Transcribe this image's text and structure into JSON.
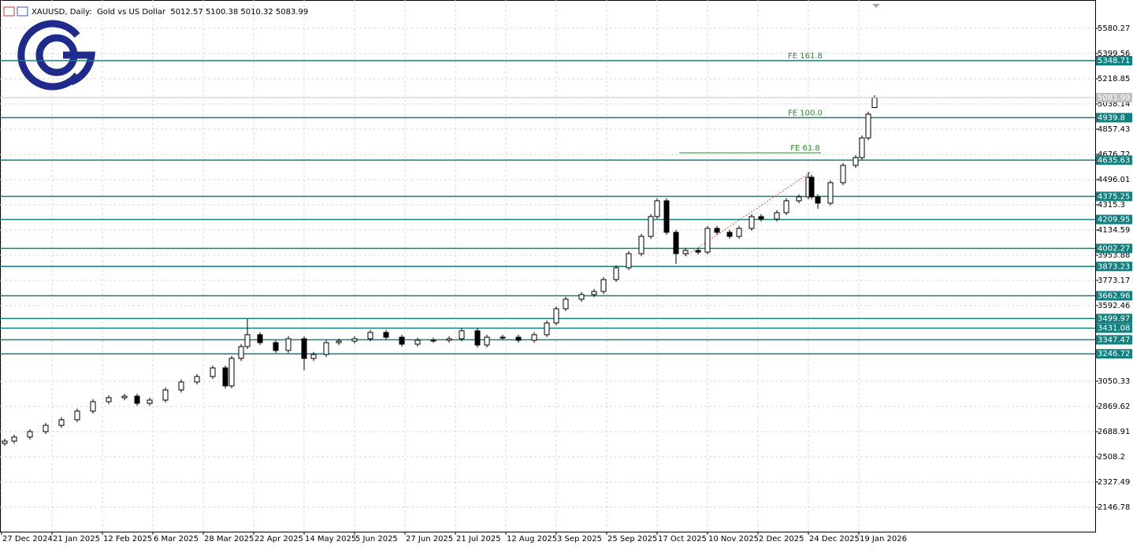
{
  "chart_data": {
    "type": "candlestick",
    "title": "XAUUSD, Daily:  Gold vs US Dollar  5012.57 5100.38 5010.32 5083.99",
    "x": [
      1,
      4,
      9,
      14,
      19,
      24,
      29,
      34,
      39,
      43,
      47,
      52,
      57,
      62,
      67,
      71,
      73,
      76,
      78,
      82,
      87,
      91,
      96,
      99,
      103,
      107,
      112,
      117,
      122,
      127,
      132,
      137,
      142,
      146,
      151,
      154,
      159,
      164,
      169,
      173,
      176,
      179,
      184,
      188,
      191,
      195,
      199,
      203,
      206,
      208,
      211,
      214,
      217,
      221,
      224,
      227,
      231,
      234,
      238,
      241,
      246,
      249,
      253,
      256,
      257,
      259,
      263,
      267,
      271,
      273,
      275,
      277
    ],
    "open": [
      2605,
      2621,
      2650,
      2689,
      2734,
      2774,
      2836,
      2904,
      2932,
      2943,
      2892,
      2915,
      2988,
      3045,
      3084,
      3146,
      3017,
      3214,
      3299,
      3384,
      3327,
      3271,
      3355,
      3214,
      3242,
      3327,
      3338,
      3355,
      3400,
      3366,
      3316,
      3344,
      3344,
      3355,
      3412,
      3310,
      3366,
      3366,
      3344,
      3384,
      3468,
      3570,
      3638,
      3672,
      3694,
      3779,
      3864,
      3965,
      4089,
      4231,
      4344,
      4118,
      3965,
      3988,
      3976,
      4146,
      4118,
      4089,
      4146,
      4231,
      4213,
      4259,
      4344,
      4372,
      4513,
      4372,
      4327,
      4474,
      4598,
      4654,
      4795,
      5012.57
    ],
    "high": [
      2639,
      2668,
      2707,
      2752,
      2792,
      2854,
      2922,
      2950,
      2961,
      2961,
      2933,
      3006,
      3063,
      3102,
      3164,
      3164,
      3232,
      3317,
      3497,
      3402,
      3345,
      3373,
      3373,
      3260,
      3345,
      3356,
      3373,
      3418,
      3418,
      3384,
      3362,
      3362,
      3373,
      3430,
      3430,
      3384,
      3384,
      3384,
      3402,
      3486,
      3588,
      3656,
      3690,
      3712,
      3797,
      3882,
      3983,
      4107,
      4249,
      4364,
      4362,
      4136,
      4006,
      4006,
      4164,
      4164,
      4136,
      4164,
      4249,
      4249,
      4277,
      4362,
      4390,
      4550,
      4531,
      4390,
      4492,
      4616,
      4672,
      4813,
      4983,
      5100.38
    ],
    "low": [
      2587,
      2603,
      2632,
      2671,
      2716,
      2756,
      2818,
      2886,
      2914,
      2874,
      2874,
      2897,
      2970,
      3027,
      3066,
      2999,
      2999,
      3196,
      3281,
      3309,
      3253,
      3253,
      3129,
      3196,
      3224,
      3309,
      3320,
      3337,
      3348,
      3298,
      3298,
      3326,
      3326,
      3337,
      3292,
      3292,
      3348,
      3326,
      3326,
      3366,
      3450,
      3552,
      3620,
      3654,
      3676,
      3761,
      3846,
      3947,
      4071,
      4213,
      4100,
      3892,
      3947,
      3958,
      3958,
      4100,
      4071,
      4071,
      4128,
      4195,
      4195,
      4241,
      4326,
      4354,
      4354,
      4287,
      4309,
      4456,
      4580,
      4636,
      4777,
      5010.32
    ],
    "close": [
      2621,
      2650,
      2689,
      2734,
      2774,
      2836,
      2904,
      2932,
      2943,
      2892,
      2915,
      2988,
      3045,
      3084,
      3146,
      3017,
      3214,
      3299,
      3384,
      3327,
      3271,
      3355,
      3214,
      3242,
      3327,
      3338,
      3355,
      3400,
      3366,
      3316,
      3344,
      3344,
      3355,
      3412,
      3310,
      3366,
      3366,
      3344,
      3384,
      3468,
      3570,
      3638,
      3672,
      3694,
      3779,
      3864,
      3965,
      4089,
      4231,
      4344,
      4118,
      3965,
      3988,
      3976,
      4146,
      4118,
      4089,
      4146,
      4231,
      4213,
      4259,
      4344,
      4372,
      4513,
      4372,
      4327,
      4474,
      4598,
      4654,
      4795,
      4965,
      5083.99
    ],
    "xlim": [
      -0.5,
      347
    ],
    "ylim": [
      1971.7,
      5783.6
    ],
    "xticks": [
      {
        "value": 0,
        "label": "27 Dec 2024"
      },
      {
        "value": 16,
        "label": "21 Jan 2025"
      },
      {
        "value": 32,
        "label": "12 Feb 2025"
      },
      {
        "value": 48,
        "label": "6 Mar 2025"
      },
      {
        "value": 64,
        "label": "28 Mar 2025"
      },
      {
        "value": 80,
        "label": "22 Apr 2025"
      },
      {
        "value": 96,
        "label": "14 May 2025"
      },
      {
        "value": 112,
        "label": "5 Jun 2025"
      },
      {
        "value": 128,
        "label": "27 Jun 2025"
      },
      {
        "value": 144,
        "label": "21 Jul 2025"
      },
      {
        "value": 160,
        "label": "12 Aug 2025"
      },
      {
        "value": 176,
        "label": "3 Sep 2025"
      },
      {
        "value": 192,
        "label": "25 Sep 2025"
      },
      {
        "value": 208,
        "label": "17 Oct 2025"
      },
      {
        "value": 224,
        "label": "10 Nov 2025"
      },
      {
        "value": 240,
        "label": "2 Dec 2025"
      },
      {
        "value": 256,
        "label": "24 Dec 2025"
      },
      {
        "value": 272,
        "label": "19 Jan 2026"
      }
    ],
    "yticks": [
      5580.27,
      5399.56,
      5218.85,
      5038.14,
      4857.43,
      4676.72,
      4496.01,
      4315.3,
      4134.59,
      3953.88,
      3773.17,
      3592.46,
      3050.33,
      2869.62,
      2688.91,
      2508.2,
      2327.49,
      2146.78
    ],
    "grid": true,
    "levels": [
      5348.71,
      4939.8,
      4635.63,
      4375.25,
      4209.95,
      4002.27,
      3873.23,
      3662.96,
      3499.97,
      3431.08,
      3347.47,
      3246.72
    ],
    "level_color": "#138080",
    "current_price": 5083.99,
    "fibs": [
      {
        "label": "FE 161.8",
        "value": 5348.71
      },
      {
        "label": "FE 100.0",
        "value": 4939.8
      },
      {
        "label": "FE 61.8",
        "value": 4688,
        "x": [
          215,
          260
        ]
      }
    ],
    "fib_color": "#2e8b2e",
    "trend_line": {
      "x": [
        217,
        257
      ],
      "y": [
        3948,
        4552
      ],
      "color": "#e05050"
    }
  }
}
